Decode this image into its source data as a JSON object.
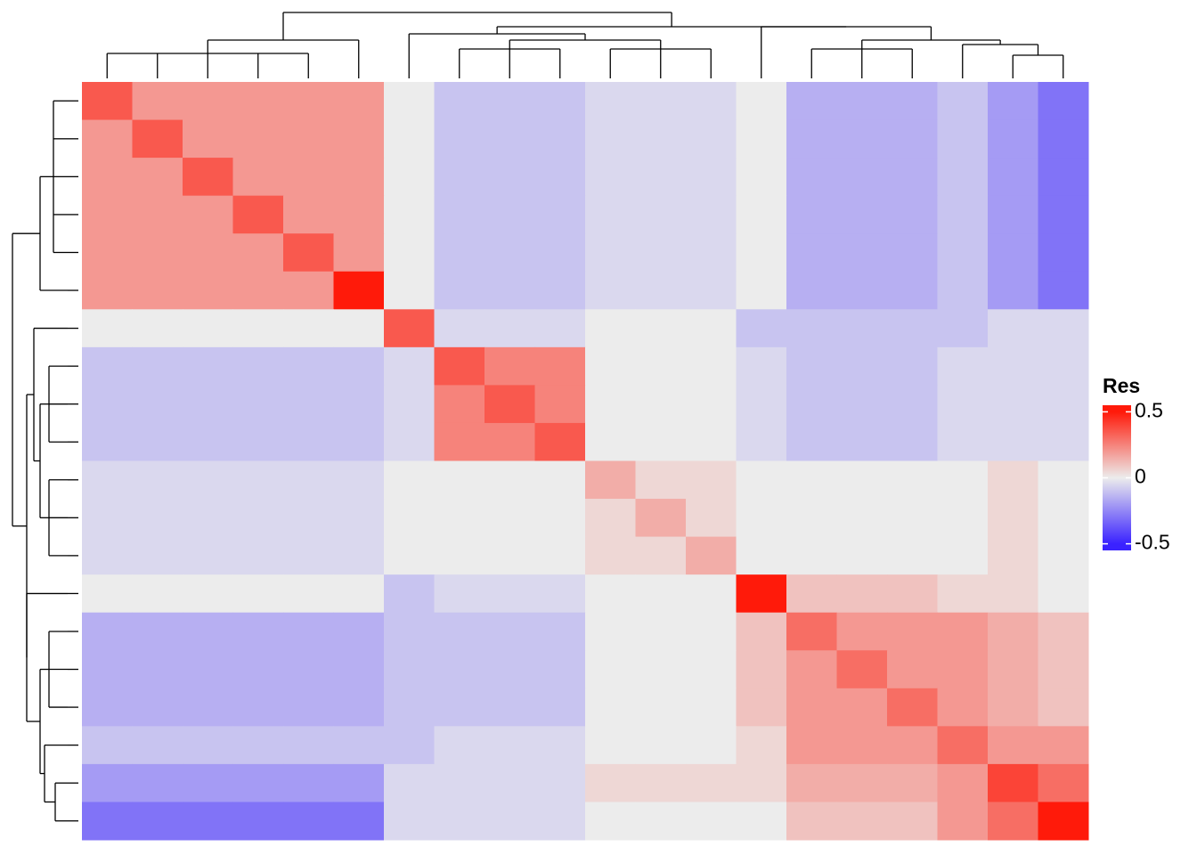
{
  "chart_data": {
    "type": "heatmap",
    "legend_title": "Res",
    "matrix": [
      [
        0.35,
        0.2,
        0.2,
        0.2,
        0.2,
        0.2,
        0,
        -0.1,
        -0.1,
        -0.1,
        -0.05,
        -0.05,
        -0.05,
        0,
        -0.15,
        -0.15,
        -0.15,
        -0.1,
        -0.2,
        -0.3
      ],
      [
        0.2,
        0.35,
        0.2,
        0.2,
        0.2,
        0.2,
        0,
        -0.1,
        -0.1,
        -0.1,
        -0.05,
        -0.05,
        -0.05,
        0,
        -0.15,
        -0.15,
        -0.15,
        -0.1,
        -0.2,
        -0.3
      ],
      [
        0.2,
        0.2,
        0.35,
        0.2,
        0.2,
        0.2,
        0,
        -0.1,
        -0.1,
        -0.1,
        -0.05,
        -0.05,
        -0.05,
        0,
        -0.15,
        -0.15,
        -0.15,
        -0.1,
        -0.2,
        -0.3
      ],
      [
        0.2,
        0.2,
        0.2,
        0.35,
        0.2,
        0.2,
        0,
        -0.1,
        -0.1,
        -0.1,
        -0.05,
        -0.05,
        -0.05,
        0,
        -0.15,
        -0.15,
        -0.15,
        -0.1,
        -0.2,
        -0.3
      ],
      [
        0.2,
        0.2,
        0.2,
        0.2,
        0.35,
        0.2,
        0,
        -0.1,
        -0.1,
        -0.1,
        -0.05,
        -0.05,
        -0.05,
        0,
        -0.15,
        -0.15,
        -0.15,
        -0.1,
        -0.2,
        -0.3
      ],
      [
        0.2,
        0.2,
        0.2,
        0.2,
        0.2,
        0.5,
        0,
        -0.1,
        -0.1,
        -0.1,
        -0.05,
        -0.05,
        -0.05,
        0,
        -0.15,
        -0.15,
        -0.15,
        -0.1,
        -0.2,
        -0.3
      ],
      [
        0,
        0,
        0,
        0,
        0,
        0,
        0.35,
        -0.05,
        -0.05,
        -0.05,
        0,
        0,
        0,
        -0.1,
        -0.1,
        -0.1,
        -0.1,
        -0.1,
        -0.05,
        -0.05
      ],
      [
        -0.1,
        -0.1,
        -0.1,
        -0.1,
        -0.1,
        -0.1,
        -0.05,
        0.35,
        0.25,
        0.25,
        0,
        0,
        0,
        -0.05,
        -0.1,
        -0.1,
        -0.1,
        -0.05,
        -0.05,
        -0.05
      ],
      [
        -0.1,
        -0.1,
        -0.1,
        -0.1,
        -0.1,
        -0.1,
        -0.05,
        0.25,
        0.35,
        0.25,
        0,
        0,
        0,
        -0.05,
        -0.1,
        -0.1,
        -0.1,
        -0.05,
        -0.05,
        -0.05
      ],
      [
        -0.1,
        -0.1,
        -0.1,
        -0.1,
        -0.1,
        -0.1,
        -0.05,
        0.25,
        0.25,
        0.35,
        0,
        0,
        0,
        -0.05,
        -0.1,
        -0.1,
        -0.1,
        -0.05,
        -0.05,
        -0.05
      ],
      [
        -0.05,
        -0.05,
        -0.05,
        -0.05,
        -0.05,
        -0.05,
        0,
        0,
        0,
        0,
        0.15,
        0.05,
        0.05,
        0,
        0,
        0,
        0,
        0,
        0.05,
        0
      ],
      [
        -0.05,
        -0.05,
        -0.05,
        -0.05,
        -0.05,
        -0.05,
        0,
        0,
        0,
        0,
        0.05,
        0.15,
        0.05,
        0,
        0,
        0,
        0,
        0,
        0.05,
        0
      ],
      [
        -0.05,
        -0.05,
        -0.05,
        -0.05,
        -0.05,
        -0.05,
        0,
        0,
        0,
        0,
        0.05,
        0.05,
        0.15,
        0,
        0,
        0,
        0,
        0,
        0.05,
        0
      ],
      [
        0,
        0,
        0,
        0,
        0,
        0,
        -0.1,
        -0.05,
        -0.05,
        -0.05,
        0,
        0,
        0,
        0.5,
        0.1,
        0.1,
        0.1,
        0.05,
        0.05,
        0
      ],
      [
        -0.15,
        -0.15,
        -0.15,
        -0.15,
        -0.15,
        -0.15,
        -0.1,
        -0.1,
        -0.1,
        -0.1,
        0,
        0,
        0,
        0.1,
        0.3,
        0.2,
        0.2,
        0.2,
        0.15,
        0.1
      ],
      [
        -0.15,
        -0.15,
        -0.15,
        -0.15,
        -0.15,
        -0.15,
        -0.1,
        -0.1,
        -0.1,
        -0.1,
        0,
        0,
        0,
        0.1,
        0.2,
        0.3,
        0.2,
        0.2,
        0.15,
        0.1
      ],
      [
        -0.15,
        -0.15,
        -0.15,
        -0.15,
        -0.15,
        -0.15,
        -0.1,
        -0.1,
        -0.1,
        -0.1,
        0,
        0,
        0,
        0.1,
        0.2,
        0.2,
        0.3,
        0.2,
        0.15,
        0.1
      ],
      [
        -0.1,
        -0.1,
        -0.1,
        -0.1,
        -0.1,
        -0.1,
        -0.1,
        -0.05,
        -0.05,
        -0.05,
        0,
        0,
        0,
        0.05,
        0.2,
        0.2,
        0.2,
        0.3,
        0.2,
        0.2
      ],
      [
        -0.2,
        -0.2,
        -0.2,
        -0.2,
        -0.2,
        -0.2,
        -0.05,
        -0.05,
        -0.05,
        -0.05,
        0.05,
        0.05,
        0.05,
        0.05,
        0.15,
        0.15,
        0.15,
        0.2,
        0.4,
        0.3
      ],
      [
        -0.3,
        -0.3,
        -0.3,
        -0.3,
        -0.3,
        -0.3,
        -0.05,
        -0.05,
        -0.05,
        -0.05,
        0,
        0,
        0,
        0,
        0.1,
        0.1,
        0.1,
        0.2,
        0.3,
        0.5
      ]
    ],
    "colors": [
      "#3a22ff",
      "#ececec",
      "#ff1a0a"
    ],
    "clim": [
      -0.55,
      0.55
    ],
    "colorbar_ticks": [
      -0.5,
      0,
      0.5
    ]
  }
}
